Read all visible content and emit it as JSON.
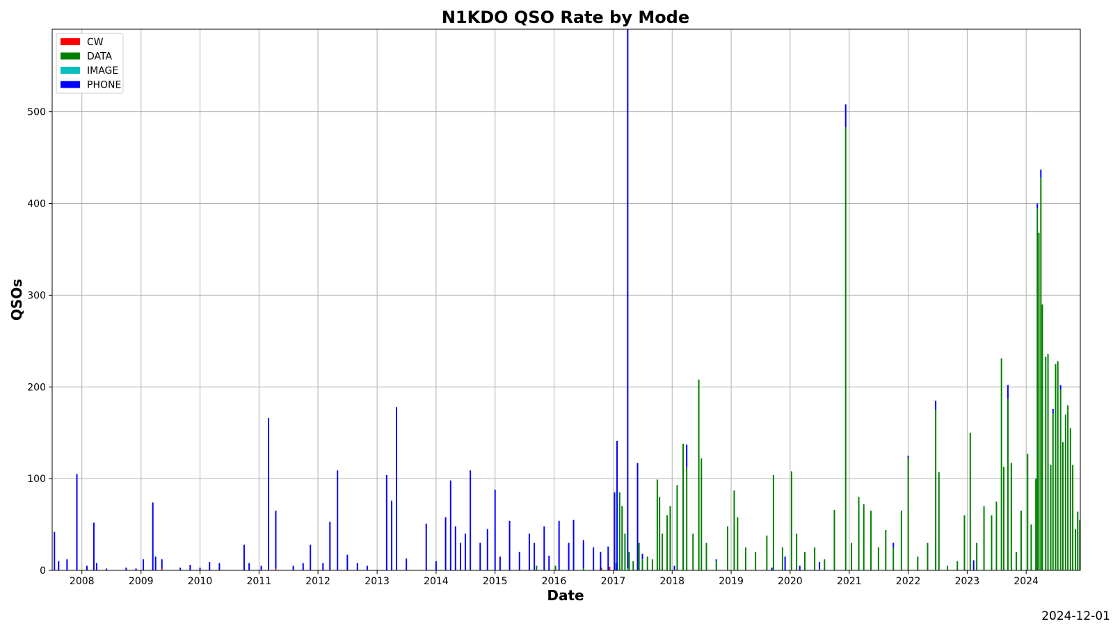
{
  "chart_data": {
    "type": "bar",
    "title": "N1KDO QSO Rate by Mode",
    "xlabel": "Date",
    "ylabel": "QSOs",
    "xlim": [
      "2007-07-01",
      "2024-12-01"
    ],
    "ylim": [
      0,
      590
    ],
    "x_ticks": [
      "2008",
      "2009",
      "2010",
      "2011",
      "2012",
      "2013",
      "2014",
      "2015",
      "2016",
      "2017",
      "2018",
      "2019",
      "2020",
      "2021",
      "2022",
      "2023",
      "2024"
    ],
    "y_ticks": [
      0,
      100,
      200,
      300,
      400,
      500
    ],
    "grid": true,
    "legend_position": "top-left",
    "stacked": true,
    "series": [
      {
        "name": "CW",
        "color": "#ff0000",
        "points": [
          [
            "2009-05-10",
            2
          ],
          [
            "2011-04-15",
            2
          ],
          [
            "2016-10-20",
            3
          ],
          [
            "2016-12-10",
            4
          ]
        ]
      },
      {
        "name": "DATA",
        "color": "#008000",
        "points": [
          [
            "2015-09-15",
            5
          ],
          [
            "2016-01-10",
            5
          ],
          [
            "2016-07-01",
            3
          ],
          [
            "2017-01-20",
            8
          ],
          [
            "2017-02-10",
            85
          ],
          [
            "2017-02-25",
            70
          ],
          [
            "2017-03-15",
            40
          ],
          [
            "2017-04-10",
            20
          ],
          [
            "2017-05-05",
            10
          ],
          [
            "2017-06-10",
            30
          ],
          [
            "2017-07-01",
            12
          ],
          [
            "2017-08-01",
            15
          ],
          [
            "2017-09-01",
            12
          ],
          [
            "2017-10-01",
            99
          ],
          [
            "2017-10-15",
            80
          ],
          [
            "2017-11-01",
            40
          ],
          [
            "2017-12-01",
            60
          ],
          [
            "2017-12-20",
            70
          ],
          [
            "2018-02-01",
            93
          ],
          [
            "2018-03-10",
            138
          ],
          [
            "2018-04-01",
            112
          ],
          [
            "2018-05-10",
            40
          ],
          [
            "2018-06-15",
            208
          ],
          [
            "2018-07-01",
            122
          ],
          [
            "2018-08-01",
            30
          ],
          [
            "2018-10-01",
            10
          ],
          [
            "2018-12-10",
            48
          ],
          [
            "2019-01-20",
            87
          ],
          [
            "2019-02-10",
            58
          ],
          [
            "2019-04-01",
            25
          ],
          [
            "2019-06-01",
            20
          ],
          [
            "2019-08-10",
            38
          ],
          [
            "2019-09-20",
            104
          ],
          [
            "2019-11-15",
            25
          ],
          [
            "2020-01-10",
            108
          ],
          [
            "2020-02-10",
            40
          ],
          [
            "2020-04-01",
            20
          ],
          [
            "2020-06-01",
            25
          ],
          [
            "2020-08-01",
            12
          ],
          [
            "2020-10-01",
            66
          ],
          [
            "2020-12-10",
            483
          ],
          [
            "2021-01-15",
            30
          ],
          [
            "2021-03-01",
            80
          ],
          [
            "2021-04-01",
            72
          ],
          [
            "2021-05-15",
            65
          ],
          [
            "2021-07-01",
            25
          ],
          [
            "2021-08-15",
            44
          ],
          [
            "2021-10-01",
            25
          ],
          [
            "2021-11-20",
            65
          ],
          [
            "2022-01-01",
            122
          ],
          [
            "2022-03-01",
            15
          ],
          [
            "2022-05-01",
            30
          ],
          [
            "2022-06-20",
            175
          ],
          [
            "2022-07-10",
            107
          ],
          [
            "2022-09-01",
            5
          ],
          [
            "2022-11-01",
            10
          ],
          [
            "2022-12-15",
            60
          ],
          [
            "2023-01-20",
            150
          ],
          [
            "2023-03-01",
            30
          ],
          [
            "2023-04-15",
            70
          ],
          [
            "2023-06-01",
            60
          ],
          [
            "2023-07-01",
            75
          ],
          [
            "2023-08-01",
            231
          ],
          [
            "2023-08-15",
            113
          ],
          [
            "2023-09-10",
            187
          ],
          [
            "2023-10-01",
            117
          ],
          [
            "2023-11-01",
            20
          ],
          [
            "2023-12-01",
            65
          ],
          [
            "2024-01-10",
            127
          ],
          [
            "2024-02-01",
            50
          ],
          [
            "2024-03-01",
            100
          ],
          [
            "2024-03-10",
            395
          ],
          [
            "2024-03-20",
            368
          ],
          [
            "2024-04-01",
            428
          ],
          [
            "2024-04-10",
            290
          ],
          [
            "2024-05-01",
            233
          ],
          [
            "2024-05-15",
            236
          ],
          [
            "2024-06-01",
            115
          ],
          [
            "2024-06-15",
            171
          ],
          [
            "2024-07-01",
            225
          ],
          [
            "2024-07-15",
            228
          ],
          [
            "2024-08-01",
            197
          ],
          [
            "2024-08-15",
            140
          ],
          [
            "2024-09-01",
            170
          ],
          [
            "2024-09-15",
            180
          ],
          [
            "2024-10-01",
            155
          ],
          [
            "2024-10-15",
            115
          ],
          [
            "2024-11-01",
            45
          ],
          [
            "2024-11-15",
            64
          ],
          [
            "2024-11-28",
            55
          ]
        ]
      },
      {
        "name": "IMAGE",
        "color": "#00bfbf",
        "points": [
          [
            "2017-04-01",
            2
          ],
          [
            "2020-07-01",
            1
          ]
        ]
      },
      {
        "name": "PHONE",
        "color": "#0000ff",
        "points": [
          [
            "2007-07-15",
            42
          ],
          [
            "2007-08-10",
            10
          ],
          [
            "2007-10-01",
            12
          ],
          [
            "2007-12-01",
            105
          ],
          [
            "2008-02-01",
            5
          ],
          [
            "2008-03-15",
            52
          ],
          [
            "2008-04-01",
            8
          ],
          [
            "2008-06-01",
            2
          ],
          [
            "2008-10-01",
            3
          ],
          [
            "2008-12-01",
            2
          ],
          [
            "2009-01-15",
            12
          ],
          [
            "2009-03-15",
            74
          ],
          [
            "2009-04-01",
            15
          ],
          [
            "2009-05-10",
            10
          ],
          [
            "2009-09-01",
            3
          ],
          [
            "2009-11-01",
            6
          ],
          [
            "2010-01-01",
            3
          ],
          [
            "2010-03-01",
            9
          ],
          [
            "2010-05-01",
            8
          ],
          [
            "2010-10-01",
            28
          ],
          [
            "2010-11-01",
            8
          ],
          [
            "2011-01-15",
            5
          ],
          [
            "2011-03-01",
            166
          ],
          [
            "2011-04-15",
            63
          ],
          [
            "2011-08-01",
            5
          ],
          [
            "2011-10-01",
            8
          ],
          [
            "2011-11-15",
            28
          ],
          [
            "2012-02-01",
            8
          ],
          [
            "2012-03-15",
            53
          ],
          [
            "2012-05-01",
            109
          ],
          [
            "2012-07-01",
            17
          ],
          [
            "2012-09-01",
            8
          ],
          [
            "2012-11-01",
            5
          ],
          [
            "2013-03-01",
            104
          ],
          [
            "2013-04-01",
            76
          ],
          [
            "2013-05-01",
            178
          ],
          [
            "2013-07-01",
            13
          ],
          [
            "2013-11-01",
            51
          ],
          [
            "2014-01-01",
            10
          ],
          [
            "2014-03-01",
            58
          ],
          [
            "2014-04-01",
            98
          ],
          [
            "2014-05-01",
            48
          ],
          [
            "2014-06-01",
            30
          ],
          [
            "2014-07-01",
            40
          ],
          [
            "2014-08-01",
            109
          ],
          [
            "2014-10-01",
            30
          ],
          [
            "2014-11-15",
            45
          ],
          [
            "2015-01-01",
            88
          ],
          [
            "2015-02-01",
            15
          ],
          [
            "2015-04-01",
            54
          ],
          [
            "2015-06-01",
            20
          ],
          [
            "2015-08-01",
            40
          ],
          [
            "2015-09-01",
            30
          ],
          [
            "2015-11-01",
            48
          ],
          [
            "2015-12-01",
            16
          ],
          [
            "2016-02-01",
            54
          ],
          [
            "2016-04-01",
            30
          ],
          [
            "2016-05-01",
            55
          ],
          [
            "2016-07-01",
            30
          ],
          [
            "2016-09-01",
            25
          ],
          [
            "2016-10-15",
            20
          ],
          [
            "2016-12-01",
            26
          ],
          [
            "2017-01-10",
            85
          ],
          [
            "2017-01-25",
            141
          ],
          [
            "2017-04-01",
            588
          ],
          [
            "2017-06-01",
            117
          ],
          [
            "2017-07-01",
            6
          ],
          [
            "2018-01-15",
            5
          ],
          [
            "2018-04-01",
            25
          ],
          [
            "2018-10-01",
            2
          ],
          [
            "2019-09-10",
            3
          ],
          [
            "2019-12-01",
            15
          ],
          [
            "2020-03-01",
            5
          ],
          [
            "2020-07-01",
            8
          ],
          [
            "2020-12-10",
            25
          ],
          [
            "2021-10-01",
            5
          ],
          [
            "2022-01-01",
            3
          ],
          [
            "2022-06-20",
            10
          ],
          [
            "2023-02-10",
            11
          ],
          [
            "2023-09-10",
            15
          ],
          [
            "2024-03-10",
            5
          ],
          [
            "2024-04-01",
            9
          ],
          [
            "2024-06-15",
            5
          ],
          [
            "2024-08-01",
            5
          ]
        ]
      }
    ]
  },
  "legend": [
    {
      "label": "CW",
      "color": "#ff0000"
    },
    {
      "label": "DATA",
      "color": "#008000"
    },
    {
      "label": "IMAGE",
      "color": "#00bfbf"
    },
    {
      "label": "PHONE",
      "color": "#0000ff"
    }
  ],
  "footer": {
    "date": "2024-12-01"
  }
}
